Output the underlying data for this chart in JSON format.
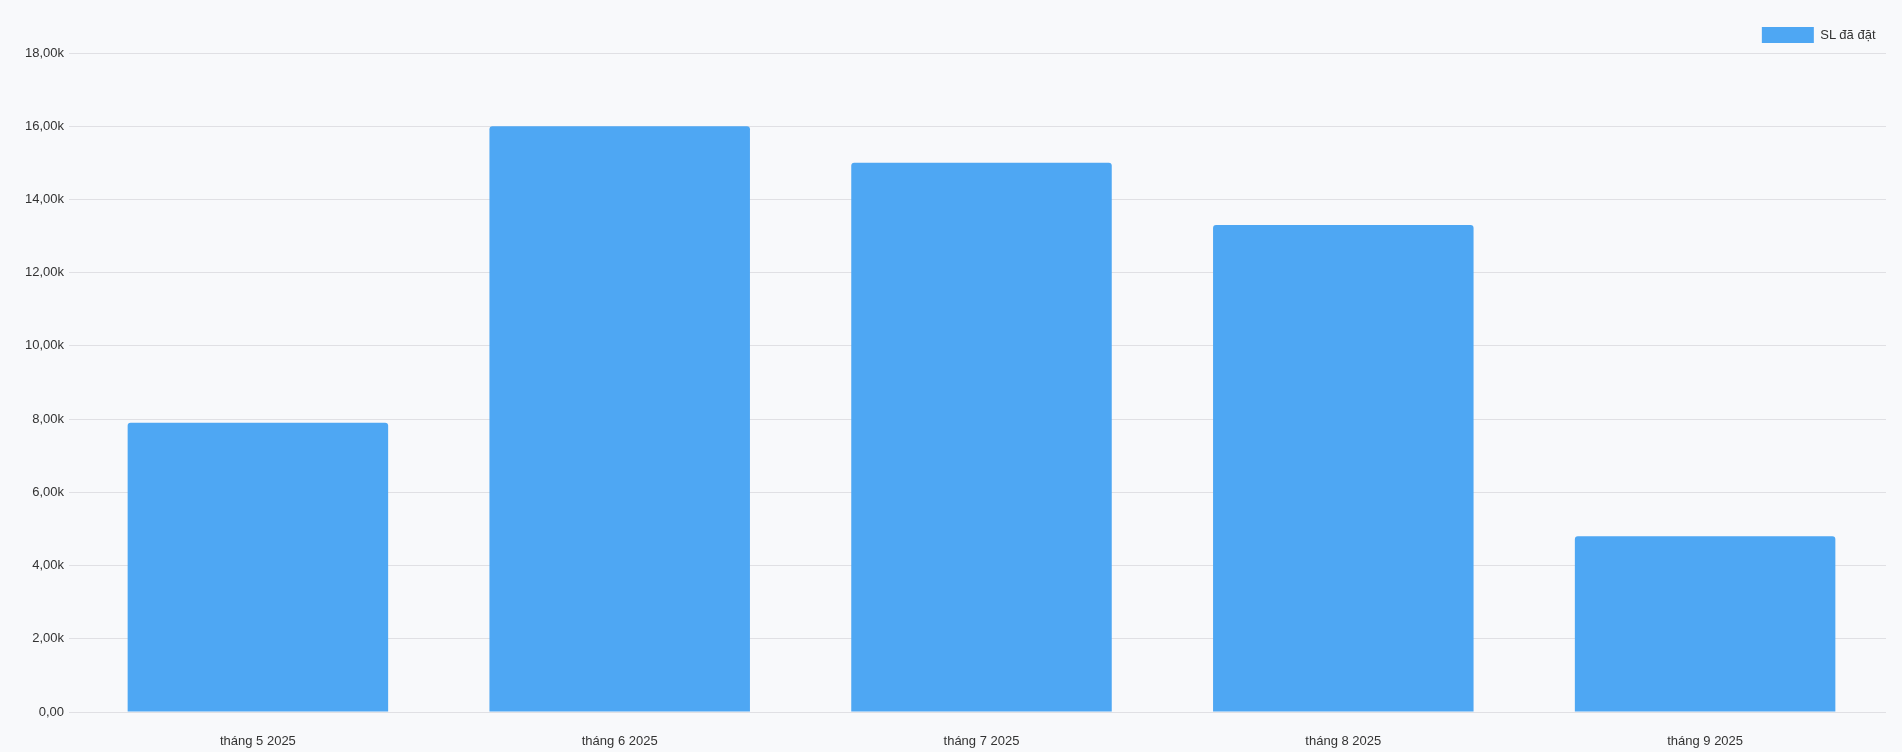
{
  "chart_data": {
    "type": "bar",
    "categories": [
      "tháng 5 2025",
      "tháng 6 2025",
      "tháng 7 2025",
      "tháng 8 2025",
      "tháng 9 2025"
    ],
    "series": [
      {
        "name": "SL đã đặt",
        "color": "#4ea7f3",
        "values": [
          7900,
          16000,
          15000,
          13300,
          4800
        ]
      }
    ],
    "ylim": [
      0,
      18000
    ],
    "yticks": [
      {
        "value": 0,
        "label": "0,00"
      },
      {
        "value": 2000,
        "label": "2,00k"
      },
      {
        "value": 4000,
        "label": "4,00k"
      },
      {
        "value": 6000,
        "label": "6,00k"
      },
      {
        "value": 8000,
        "label": "8,00k"
      },
      {
        "value": 10000,
        "label": "10,00k"
      },
      {
        "value": 12000,
        "label": "12,00k"
      },
      {
        "value": 14000,
        "label": "14,00k"
      },
      {
        "value": 16000,
        "label": "16,00k"
      },
      {
        "value": 18000,
        "label": "18,00k"
      }
    ],
    "grid": "y",
    "legend": "top right"
  }
}
